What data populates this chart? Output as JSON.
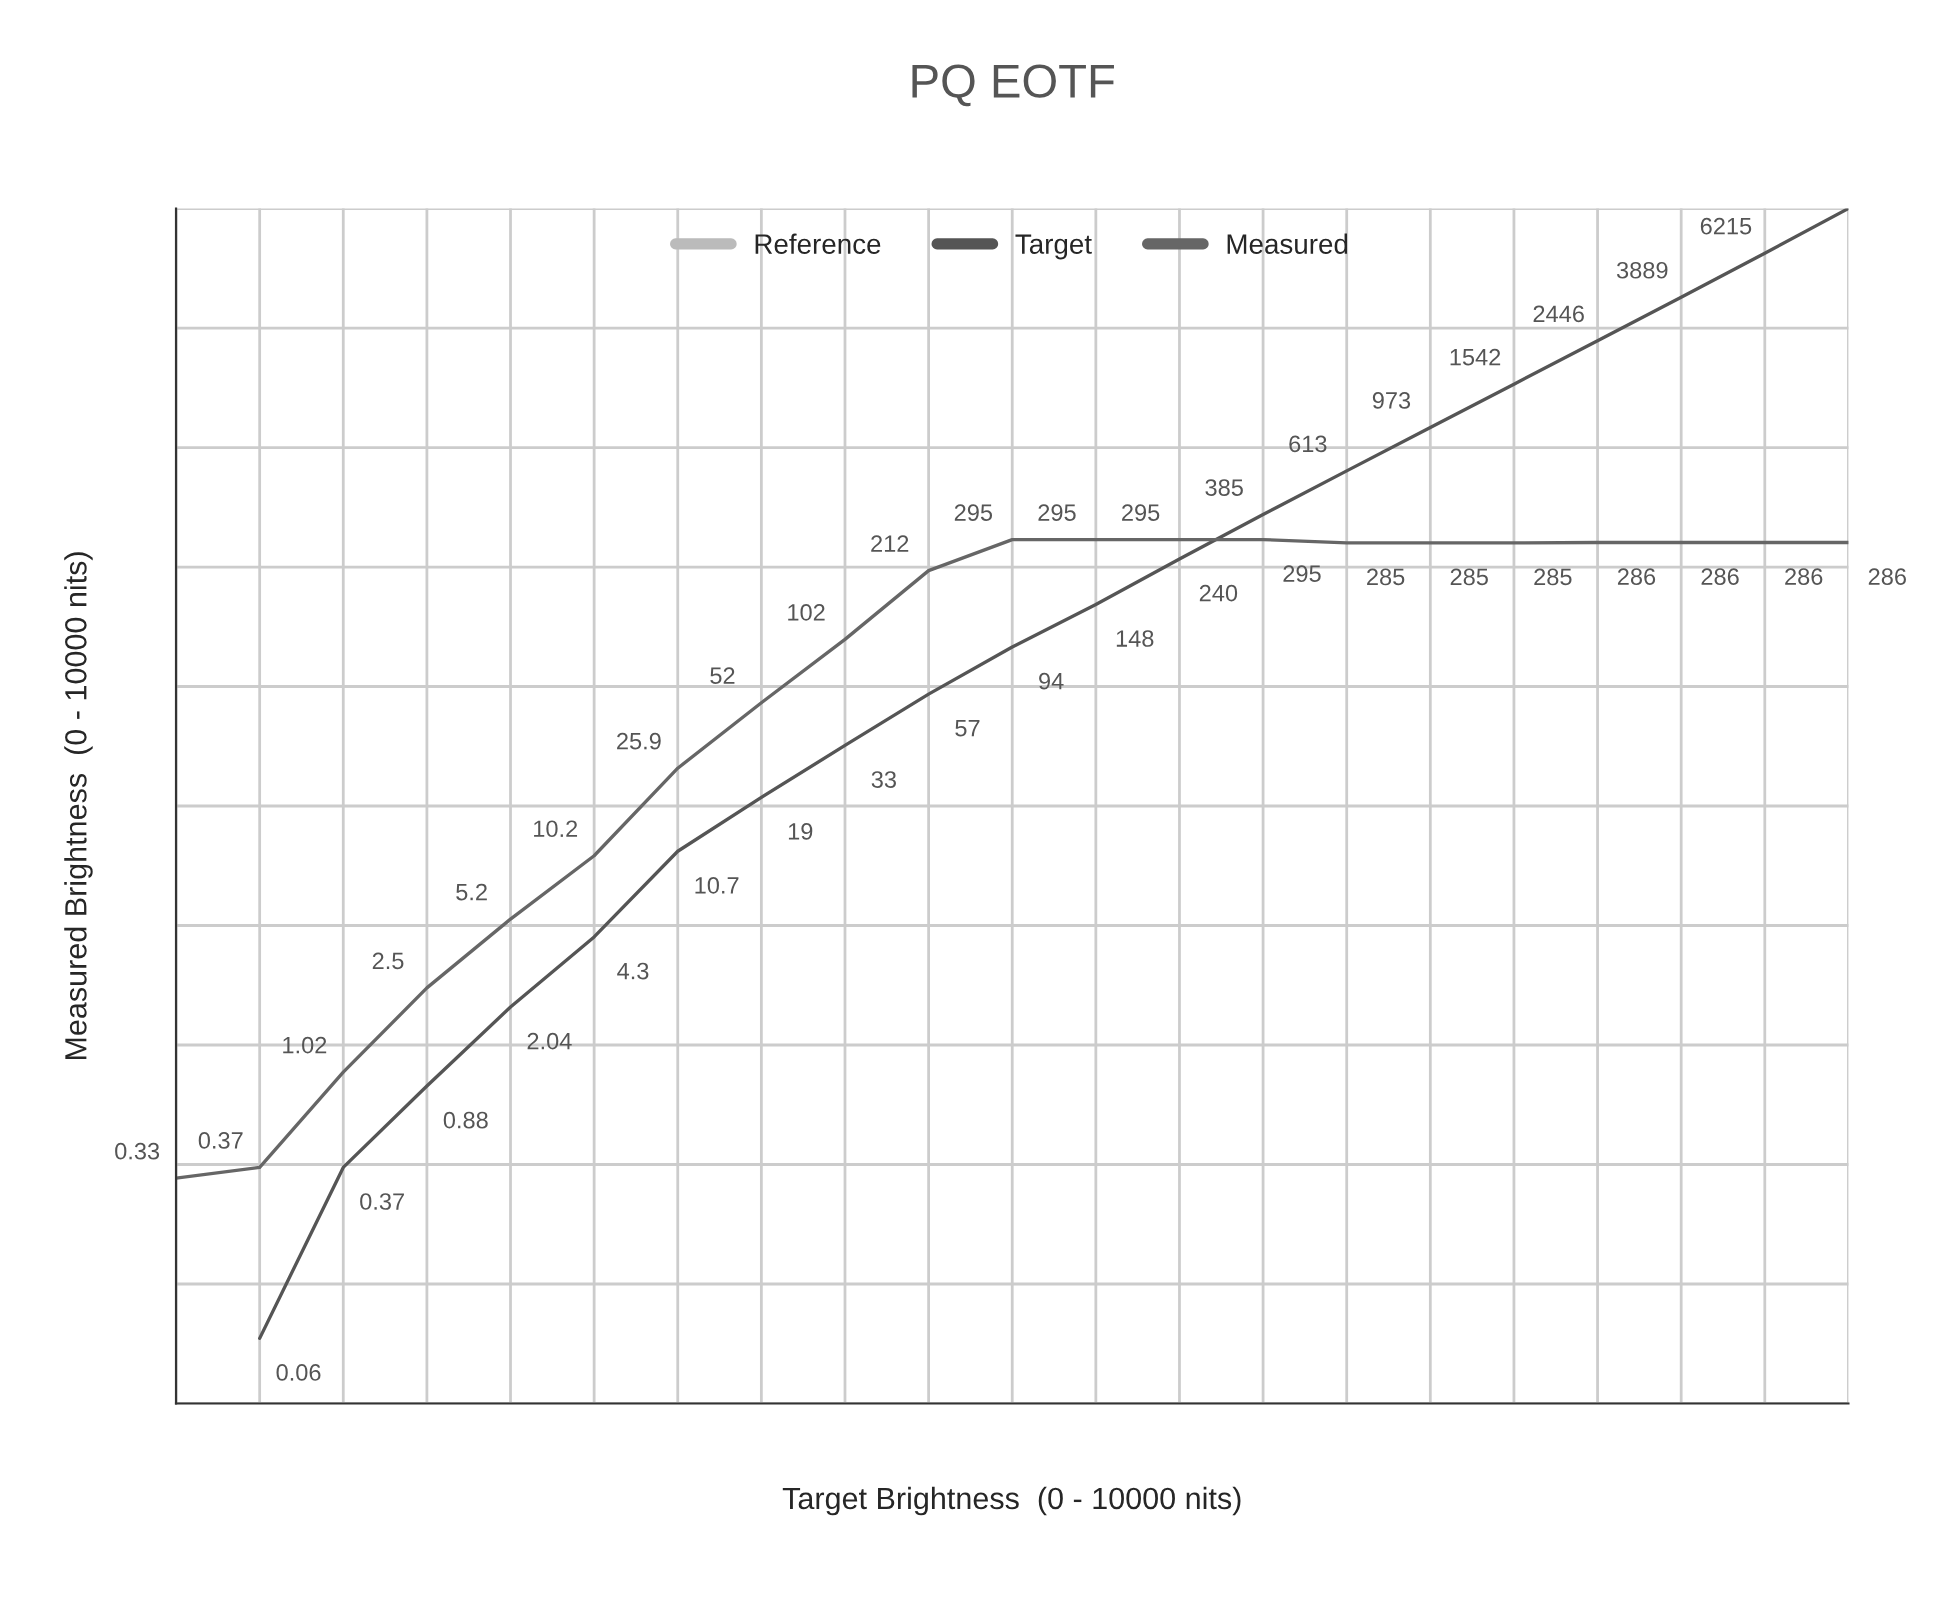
{
  "chart_data": {
    "type": "line",
    "title": "PQ EOTF",
    "xlabel": "Target Brightness  (0 - 10000 nits)",
    "ylabel": "Measured Brightness  (0 - 10000 nits)",
    "categories": [
      null,
      null,
      null,
      null,
      null,
      null,
      null,
      null,
      null,
      null,
      null,
      null,
      null,
      null,
      null,
      null,
      null,
      null,
      null,
      null,
      null
    ],
    "ylim": [
      0.03,
      10000
    ],
    "log": true,
    "grid": true,
    "legend": "top",
    "tick_labels": false,
    "marker": "none",
    "series": [
      {
        "name": "Reference",
        "color": "#bbbbbb",
        "values": [
          null,
          null,
          null,
          null,
          null,
          null,
          null,
          null,
          null,
          null,
          null,
          null,
          null,
          null,
          null,
          null,
          null,
          null,
          null,
          null,
          null
        ]
      },
      {
        "name": "Target",
        "color": "#555555",
        "values": [
          null,
          0.06,
          0.37,
          0.88,
          2.04,
          4.3,
          10.7,
          19,
          33,
          57,
          94,
          148,
          240,
          385,
          613,
          973,
          1542,
          2446,
          3889,
          6215,
          10000
        ],
        "value_labels": [
          null,
          "0.06",
          "0.37",
          "0.88",
          "2.04",
          "4.3",
          "10.7",
          "19",
          "33",
          "57",
          "94",
          "148",
          "240",
          "385",
          "613",
          "973",
          "1542",
          "2446",
          "3889",
          "6215",
          null
        ]
      },
      {
        "name": "Measured",
        "color": "#666666",
        "values": [
          0.33,
          0.37,
          1.02,
          2.5,
          5.2,
          10.2,
          25.9,
          52,
          102,
          212,
          295,
          295,
          295,
          295,
          285,
          285,
          285,
          286,
          286,
          286,
          286
        ],
        "value_labels": [
          "0.33",
          "0.37",
          "1.02",
          "2.5",
          "5.2",
          "10.2",
          "25.9",
          "52",
          "102",
          "212",
          "295",
          "295",
          "295",
          "295",
          "285",
          "285",
          "285",
          "286",
          "286",
          "286",
          "286"
        ]
      }
    ]
  }
}
